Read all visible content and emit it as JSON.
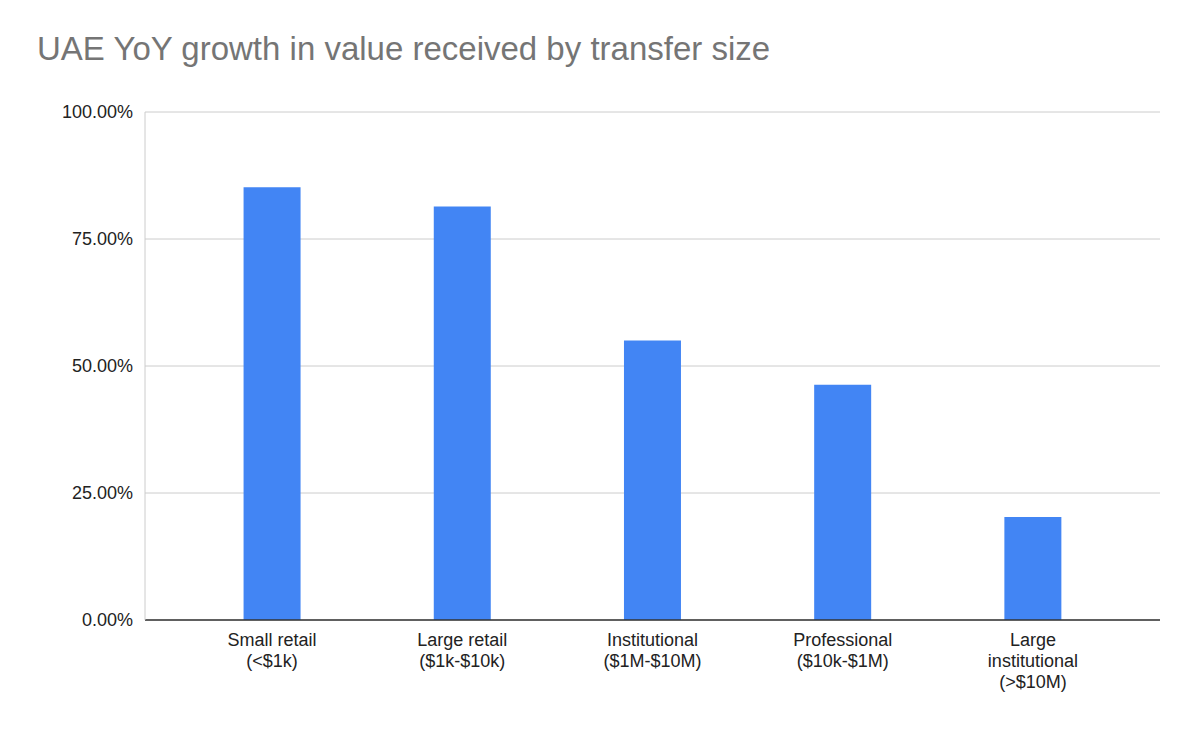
{
  "chart_data": {
    "type": "bar",
    "title": "UAE YoY growth in value received by transfer size",
    "categories": [
      "Small retail (<$1k)",
      "Large retail ($1k-$10k)",
      "Institutional ($1M-$10M)",
      "Professional ($10k-$1M)",
      "Large institutional (>$10M)"
    ],
    "values": [
      85.2,
      81.4,
      55.0,
      46.3,
      20.3
    ],
    "color": "#4285f4",
    "ylim": [
      0,
      100
    ],
    "yticks": [
      {
        "value": 0,
        "label": "0.00%"
      },
      {
        "value": 25,
        "label": "25.00%"
      },
      {
        "value": 50,
        "label": "50.00%"
      },
      {
        "value": 75,
        "label": "75.00%"
      },
      {
        "value": 100,
        "label": "100.00%"
      }
    ],
    "grid": true
  }
}
